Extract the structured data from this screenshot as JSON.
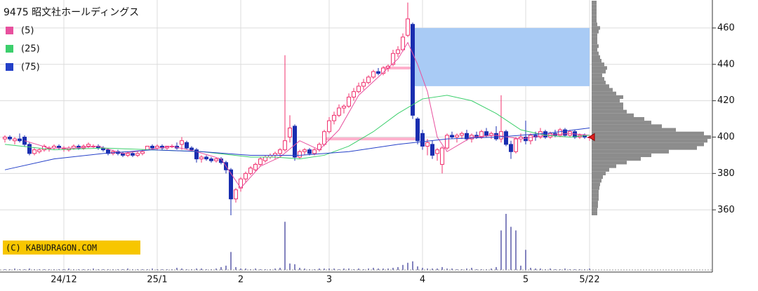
{
  "chart_data": {
    "type": "candlestick",
    "title": "9475 昭文社ホールディングス",
    "copyright": "(C) KABUDRAGON.COM",
    "xlim": [
      -1,
      144
    ],
    "xticks": [
      {
        "value": 12,
        "label": "24/12"
      },
      {
        "value": 31,
        "label": "25/1"
      },
      {
        "value": 48,
        "label": "2"
      },
      {
        "value": 66,
        "label": "3"
      },
      {
        "value": 85,
        "label": "4"
      },
      {
        "value": 106,
        "label": "5"
      },
      {
        "value": 119,
        "label": "5/22"
      }
    ],
    "ylim": [
      352,
      475
    ],
    "yticks": [
      360,
      380,
      400,
      420,
      440,
      460
    ],
    "grid": true,
    "up_color": "#f0306e",
    "down_color": "#1a2eb0",
    "ohlc": [
      [
        399,
        401,
        397,
        400
      ],
      [
        400,
        401,
        398,
        399
      ],
      [
        398,
        400,
        396,
        399
      ],
      [
        399,
        402,
        397,
        398
      ],
      [
        400,
        401,
        395,
        396
      ],
      [
        396,
        397,
        390,
        391
      ],
      [
        391,
        394,
        390,
        393
      ],
      [
        392,
        394,
        391,
        393
      ],
      [
        393,
        396,
        392,
        395
      ],
      [
        394,
        395,
        392,
        394
      ],
      [
        394,
        396,
        393,
        395
      ],
      [
        395,
        396,
        393,
        394
      ],
      [
        394,
        395,
        392,
        394
      ],
      [
        393,
        395,
        392,
        394
      ],
      [
        394,
        396,
        393,
        395
      ],
      [
        395,
        396,
        393,
        394
      ],
      [
        394,
        396,
        393,
        395
      ],
      [
        395,
        397,
        394,
        396
      ],
      [
        395,
        396,
        394,
        395
      ],
      [
        395,
        396,
        393,
        394
      ],
      [
        394,
        395,
        392,
        393
      ],
      [
        393,
        394,
        390,
        391
      ],
      [
        391,
        393,
        390,
        392
      ],
      [
        392,
        393,
        390,
        391
      ],
      [
        391,
        392,
        389,
        390
      ],
      [
        390,
        392,
        389,
        391
      ],
      [
        391,
        392,
        389,
        390
      ],
      [
        390,
        392,
        389,
        391
      ],
      [
        391,
        393,
        390,
        392
      ],
      [
        393,
        395,
        393,
        395
      ],
      [
        395,
        396,
        393,
        394
      ],
      [
        394,
        396,
        393,
        395
      ],
      [
        395,
        396,
        393,
        394
      ],
      [
        394,
        395,
        393,
        395
      ],
      [
        395,
        396,
        394,
        395
      ],
      [
        395,
        397,
        393,
        394
      ],
      [
        396,
        400,
        393,
        398
      ],
      [
        397,
        398,
        393,
        394
      ],
      [
        394,
        395,
        392,
        393
      ],
      [
        393,
        394,
        386,
        388
      ],
      [
        388,
        390,
        386,
        389
      ],
      [
        389,
        390,
        387,
        388
      ],
      [
        388,
        389,
        386,
        387
      ],
      [
        387,
        389,
        386,
        388
      ],
      [
        388,
        389,
        385,
        386
      ],
      [
        386,
        387,
        380,
        382
      ],
      [
        382,
        383,
        357,
        366
      ],
      [
        366,
        372,
        364,
        371
      ],
      [
        372,
        378,
        370,
        377
      ],
      [
        377,
        381,
        375,
        380
      ],
      [
        380,
        384,
        379,
        383
      ],
      [
        382,
        386,
        381,
        385
      ],
      [
        385,
        389,
        384,
        388
      ],
      [
        387,
        390,
        386,
        389
      ],
      [
        389,
        391,
        388,
        390
      ],
      [
        390,
        392,
        388,
        391
      ],
      [
        391,
        394,
        389,
        393
      ],
      [
        393,
        445,
        392,
        398
      ],
      [
        400,
        412,
        397,
        405
      ],
      [
        406,
        407,
        387,
        389
      ],
      [
        389,
        393,
        388,
        392
      ],
      [
        392,
        394,
        390,
        393
      ],
      [
        393,
        394,
        390,
        391
      ],
      [
        391,
        394,
        390,
        393
      ],
      [
        393,
        397,
        392,
        396
      ],
      [
        396,
        404,
        395,
        403
      ],
      [
        403,
        411,
        402,
        409
      ],
      [
        409,
        414,
        407,
        412
      ],
      [
        412,
        418,
        411,
        416
      ],
      [
        416,
        418,
        413,
        417
      ],
      [
        417,
        424,
        416,
        422
      ],
      [
        422,
        427,
        420,
        425
      ],
      [
        425,
        430,
        424,
        428
      ],
      [
        428,
        432,
        426,
        430
      ],
      [
        430,
        434,
        429,
        433
      ],
      [
        433,
        437,
        432,
        436
      ],
      [
        436,
        438,
        434,
        435
      ],
      [
        435,
        439,
        434,
        438
      ],
      [
        438,
        440,
        436,
        439
      ],
      [
        440,
        448,
        439,
        446
      ],
      [
        446,
        450,
        444,
        448
      ],
      [
        448,
        457,
        447,
        455
      ],
      [
        456,
        474,
        455,
        465
      ],
      [
        462,
        463,
        410,
        412
      ],
      [
        410,
        411,
        396,
        398
      ],
      [
        402,
        404,
        393,
        395
      ],
      [
        395,
        399,
        390,
        397
      ],
      [
        396,
        398,
        388,
        390
      ],
      [
        391,
        394,
        387,
        393
      ],
      [
        385,
        395,
        380,
        394
      ],
      [
        394,
        402,
        393,
        401
      ],
      [
        401,
        403,
        399,
        400
      ],
      [
        400,
        402,
        397,
        401
      ],
      [
        401,
        403,
        399,
        402
      ],
      [
        402,
        404,
        398,
        399
      ],
      [
        399,
        402,
        397,
        401
      ],
      [
        401,
        403,
        399,
        400
      ],
      [
        400,
        404,
        399,
        403
      ],
      [
        403,
        405,
        400,
        401
      ],
      [
        401,
        403,
        399,
        402
      ],
      [
        402,
        406,
        398,
        399
      ],
      [
        399,
        423,
        397,
        403
      ],
      [
        403,
        404,
        395,
        396
      ],
      [
        396,
        398,
        388,
        392
      ],
      [
        392,
        400,
        391,
        399
      ],
      [
        399,
        402,
        397,
        400
      ],
      [
        400,
        409,
        396,
        398
      ],
      [
        398,
        402,
        396,
        401
      ],
      [
        401,
        403,
        398,
        400
      ],
      [
        400,
        405,
        399,
        403
      ],
      [
        403,
        404,
        399,
        400
      ],
      [
        400,
        403,
        399,
        402
      ],
      [
        402,
        404,
        400,
        401
      ],
      [
        401,
        405,
        400,
        404
      ],
      [
        404,
        405,
        400,
        401
      ],
      [
        401,
        404,
        400,
        403
      ],
      [
        403,
        404,
        399,
        400
      ],
      [
        400,
        402,
        399,
        401
      ],
      [
        401,
        402,
        399,
        400
      ],
      [
        400,
        401,
        398,
        400
      ]
    ],
    "volume": {
      "color": "#5a5aa8",
      "values": [
        1,
        1,
        2,
        1,
        1,
        2,
        1,
        1,
        1,
        1,
        1,
        1,
        1,
        2,
        1,
        1,
        1,
        1,
        2,
        1,
        1,
        1,
        1,
        1,
        1,
        2,
        1,
        1,
        1,
        1,
        2,
        1,
        1,
        1,
        1,
        3,
        2,
        1,
        1,
        2,
        2,
        1,
        1,
        2,
        4,
        6,
        25,
        4,
        2,
        2,
        1,
        2,
        1,
        1,
        1,
        2,
        3,
        67,
        9,
        8,
        3,
        2,
        1,
        1,
        2,
        2,
        2,
        2,
        1,
        2,
        2,
        1,
        2,
        1,
        2,
        3,
        2,
        2,
        2,
        3,
        4,
        7,
        10,
        12,
        5,
        3,
        2,
        2,
        2,
        4,
        2,
        2,
        1,
        1,
        2,
        3,
        1,
        1,
        1,
        2,
        4,
        55,
        78,
        60,
        55,
        6,
        28,
        3,
        2,
        2,
        1,
        2,
        1,
        1,
        2,
        1,
        1,
        1,
        1,
        2
      ]
    },
    "series": [
      {
        "name": "(5)",
        "color": "#e8509e",
        "x": [
          4,
          9,
          14,
          19,
          24,
          29,
          34,
          39,
          44,
          48,
          52,
          56,
          60,
          64,
          68,
          72,
          76,
          80,
          82,
          84,
          86,
          88,
          90,
          95,
          100,
          105,
          110,
          115,
          119
        ],
        "values": [
          398,
          394,
          394,
          395,
          391,
          393,
          395,
          392,
          388,
          372,
          384,
          389,
          398,
          393,
          404,
          423,
          433,
          443,
          452,
          440,
          425,
          400,
          392,
          400,
          401,
          399,
          401,
          402,
          401
        ]
      },
      {
        "name": "(25)",
        "color": "#3ccf6c",
        "x": [
          0,
          10,
          20,
          30,
          40,
          50,
          55,
          60,
          65,
          70,
          75,
          80,
          85,
          90,
          95,
          100,
          105,
          110,
          115,
          119
        ],
        "values": [
          396,
          393,
          394,
          393,
          392,
          389,
          389,
          388,
          390,
          395,
          403,
          413,
          421,
          423,
          420,
          413,
          404,
          401,
          400,
          401
        ]
      },
      {
        "name": "(75)",
        "color": "#2440c8",
        "x": [
          0,
          10,
          20,
          30,
          40,
          50,
          60,
          70,
          80,
          90,
          100,
          110,
          119
        ],
        "values": [
          382,
          388,
          391,
          393,
          392,
          390,
          390,
          392,
          396,
          399,
          400,
          402,
          405
        ]
      }
    ],
    "profile": {
      "color": "#8c8c8c",
      "prices": [
        358,
        360,
        362,
        364,
        366,
        368,
        370,
        372,
        374,
        376,
        378,
        380,
        382,
        384,
        386,
        388,
        390,
        392,
        394,
        396,
        398,
        400,
        402,
        404,
        406,
        408,
        410,
        412,
        414,
        416,
        418,
        420,
        422,
        424,
        426,
        428,
        430,
        432,
        434,
        436,
        438,
        440,
        442,
        444,
        446,
        448,
        450,
        452,
        454,
        456,
        458,
        460,
        462,
        464,
        466,
        468,
        470,
        472,
        474
      ],
      "values": [
        8,
        8,
        9,
        9,
        10,
        10,
        10,
        11,
        12,
        14,
        16,
        20,
        25,
        35,
        50,
        70,
        85,
        110,
        150,
        160,
        165,
        170,
        160,
        120,
        100,
        85,
        75,
        60,
        50,
        45,
        45,
        40,
        45,
        35,
        30,
        25,
        20,
        18,
        15,
        20,
        22,
        18,
        14,
        12,
        10,
        8,
        10,
        8,
        8,
        8,
        10,
        12,
        8,
        7,
        7,
        7,
        7,
        7,
        7
      ]
    },
    "zones": [
      {
        "color": "#a9cbf5",
        "x": [
          83,
          119
        ],
        "y": [
          428,
          460
        ]
      }
    ],
    "levels": [
      {
        "color": "#ffb0cc",
        "x": [
          65,
          84
        ],
        "value": 399
      },
      {
        "color": "#ffb0cc",
        "x": [
          77,
          83
        ],
        "value": 438
      }
    ],
    "last_price": 400
  }
}
